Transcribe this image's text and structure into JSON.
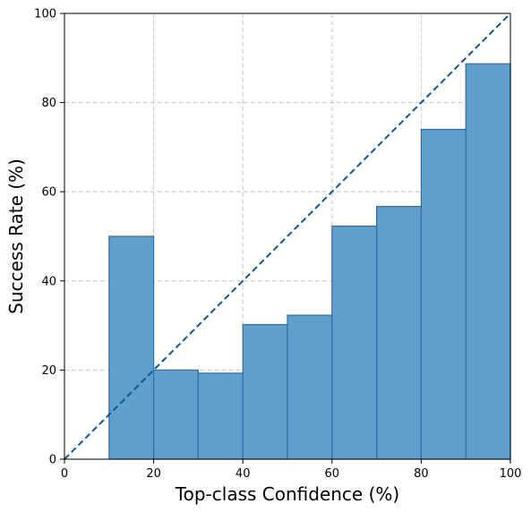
{
  "chart_data": {
    "type": "bar",
    "title": "",
    "xlabel": "Top-class Confidence (%)",
    "ylabel": "Success Rate (%)",
    "xlim": [
      0,
      100
    ],
    "ylim": [
      0,
      100
    ],
    "xticks": [
      "0",
      "20",
      "40",
      "60",
      "80",
      "100"
    ],
    "yticks": [
      "0",
      "20",
      "40",
      "60",
      "80",
      "100"
    ],
    "grid": true,
    "bins": [
      {
        "start": 10,
        "end": 20,
        "value": 50.0
      },
      {
        "start": 20,
        "end": 30,
        "value": 20.0
      },
      {
        "start": 30,
        "end": 40,
        "value": 19.3
      },
      {
        "start": 40,
        "end": 50,
        "value": 30.2
      },
      {
        "start": 50,
        "end": 60,
        "value": 32.3
      },
      {
        "start": 60,
        "end": 70,
        "value": 52.3
      },
      {
        "start": 70,
        "end": 80,
        "value": 56.7
      },
      {
        "start": 80,
        "end": 90,
        "value": 74.0
      },
      {
        "start": 90,
        "end": 100,
        "value": 88.7
      }
    ],
    "reference_line": {
      "from": [
        0,
        0
      ],
      "to": [
        100,
        100
      ],
      "style": "dashed"
    },
    "colors": {
      "bar_fill": "#5f9fcb",
      "bar_edge": "#2f6fa8",
      "diagonal": "#0d5596",
      "grid": "#c8c8c8"
    }
  }
}
